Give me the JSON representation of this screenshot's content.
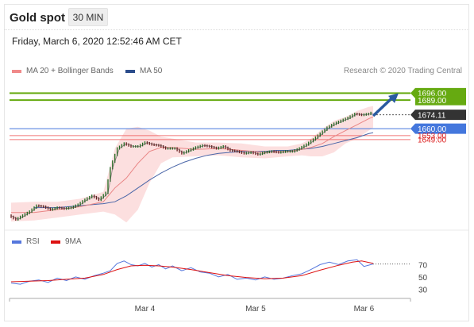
{
  "header": {
    "title": "Gold spot",
    "timeframe": "30 MIN"
  },
  "datetime": "Friday, March 6, 2020 12:52:46 AM CET",
  "legend_main": [
    {
      "label": "MA 20 + Bollinger Bands",
      "color": "#f08a8a"
    },
    {
      "label": "MA 50",
      "color": "#2c4d8c"
    }
  ],
  "credit": "Research © 2020 Trading Central",
  "legend_rsi": [
    {
      "label": "RSI",
      "color": "#5577dd"
    },
    {
      "label": "9MA",
      "color": "#dd1111"
    }
  ],
  "colors": {
    "resistance": "#66aa11",
    "pivot": "#4477dd",
    "support": "#ee5555",
    "last": "#333333",
    "arrow": "#2a5aa0"
  },
  "chart_data": {
    "type": "line",
    "price_ylim": [
      1562,
      1710
    ],
    "x_ticks": [
      {
        "label": "Mar 4",
        "bar": 58
      },
      {
        "label": "Mar 5",
        "bar": 106
      },
      {
        "label": "Mar 6",
        "bar": 153
      }
    ],
    "bar_count": 158,
    "levels": [
      {
        "value": 1696.0,
        "label": "1696.00",
        "kind": "resistance"
      },
      {
        "value": 1689.0,
        "label": "1689.00",
        "kind": "resistance"
      },
      {
        "value": 1674.11,
        "label": "1674.11",
        "kind": "last"
      },
      {
        "value": 1660.0,
        "label": "1660.00",
        "kind": "pivot"
      },
      {
        "value": 1653.0,
        "label": "1653.00",
        "kind": "support"
      },
      {
        "value": 1649.0,
        "label": "1649.00",
        "kind": "support"
      }
    ],
    "price_points": [
      [
        0,
        1572
      ],
      [
        3,
        1568
      ],
      [
        6,
        1572
      ],
      [
        9,
        1576
      ],
      [
        12,
        1582
      ],
      [
        15,
        1581
      ],
      [
        18,
        1578
      ],
      [
        21,
        1580
      ],
      [
        24,
        1579
      ],
      [
        27,
        1580
      ],
      [
        30,
        1583
      ],
      [
        33,
        1588
      ],
      [
        36,
        1592
      ],
      [
        39,
        1588
      ],
      [
        42,
        1595
      ],
      [
        44,
        1620
      ],
      [
        47,
        1640
      ],
      [
        50,
        1645
      ],
      [
        53,
        1642
      ],
      [
        56,
        1642
      ],
      [
        59,
        1646
      ],
      [
        62,
        1644
      ],
      [
        65,
        1643
      ],
      [
        68,
        1640
      ],
      [
        72,
        1640
      ],
      [
        75,
        1635
      ],
      [
        78,
        1638
      ],
      [
        81,
        1641
      ],
      [
        84,
        1643
      ],
      [
        87,
        1642
      ],
      [
        90,
        1640
      ],
      [
        93,
        1642
      ],
      [
        96,
        1638
      ],
      [
        99,
        1637
      ],
      [
        102,
        1635
      ],
      [
        105,
        1636
      ],
      [
        108,
        1634
      ],
      [
        111,
        1636
      ],
      [
        114,
        1637
      ],
      [
        117,
        1636
      ],
      [
        120,
        1637
      ],
      [
        123,
        1637
      ],
      [
        126,
        1640
      ],
      [
        129,
        1644
      ],
      [
        132,
        1649
      ],
      [
        135,
        1655
      ],
      [
        138,
        1661
      ],
      [
        141,
        1665
      ],
      [
        144,
        1668
      ],
      [
        147,
        1671
      ],
      [
        150,
        1675
      ],
      [
        153,
        1674
      ],
      [
        156,
        1675
      ],
      [
        157,
        1676
      ]
    ],
    "ma20_points": [
      [
        0,
        1575
      ],
      [
        10,
        1575
      ],
      [
        20,
        1578
      ],
      [
        30,
        1581
      ],
      [
        40,
        1586
      ],
      [
        45,
        1600
      ],
      [
        50,
        1610
      ],
      [
        55,
        1625
      ],
      [
        60,
        1637
      ],
      [
        65,
        1641
      ],
      [
        70,
        1641
      ],
      [
        80,
        1639
      ],
      [
        90,
        1640
      ],
      [
        100,
        1638
      ],
      [
        110,
        1636
      ],
      [
        120,
        1637
      ],
      [
        126,
        1639
      ],
      [
        130,
        1641
      ],
      [
        135,
        1645
      ],
      [
        140,
        1652
      ],
      [
        145,
        1658
      ],
      [
        150,
        1664
      ],
      [
        155,
        1670
      ],
      [
        157,
        1672
      ]
    ],
    "ma50_points": [
      [
        10,
        1580
      ],
      [
        20,
        1580
      ],
      [
        30,
        1582
      ],
      [
        40,
        1584
      ],
      [
        45,
        1586
      ],
      [
        50,
        1592
      ],
      [
        55,
        1600
      ],
      [
        60,
        1608
      ],
      [
        65,
        1615
      ],
      [
        70,
        1621
      ],
      [
        75,
        1626
      ],
      [
        80,
        1630
      ],
      [
        85,
        1633
      ],
      [
        90,
        1635
      ],
      [
        95,
        1636
      ],
      [
        100,
        1637
      ],
      [
        105,
        1637
      ],
      [
        110,
        1637
      ],
      [
        115,
        1638
      ],
      [
        120,
        1638
      ],
      [
        125,
        1639
      ],
      [
        130,
        1640
      ],
      [
        135,
        1642
      ],
      [
        140,
        1645
      ],
      [
        145,
        1648
      ],
      [
        150,
        1651
      ],
      [
        155,
        1655
      ],
      [
        157,
        1656
      ]
    ],
    "bollinger_upper": [
      [
        0,
        1585
      ],
      [
        10,
        1586
      ],
      [
        20,
        1586
      ],
      [
        30,
        1589
      ],
      [
        40,
        1596
      ],
      [
        45,
        1640
      ],
      [
        50,
        1660
      ],
      [
        55,
        1662
      ],
      [
        60,
        1658
      ],
      [
        65,
        1652
      ],
      [
        70,
        1650
      ],
      [
        80,
        1646
      ],
      [
        90,
        1646
      ],
      [
        100,
        1645
      ],
      [
        110,
        1642
      ],
      [
        120,
        1642
      ],
      [
        126,
        1645
      ],
      [
        130,
        1650
      ],
      [
        135,
        1660
      ],
      [
        140,
        1668
      ],
      [
        145,
        1672
      ],
      [
        150,
        1678
      ],
      [
        155,
        1682
      ],
      [
        157,
        1683
      ]
    ],
    "bollinger_lower": [
      [
        0,
        1566
      ],
      [
        10,
        1567
      ],
      [
        20,
        1570
      ],
      [
        30,
        1573
      ],
      [
        40,
        1576
      ],
      [
        45,
        1573
      ],
      [
        50,
        1565
      ],
      [
        55,
        1578
      ],
      [
        60,
        1605
      ],
      [
        65,
        1625
      ],
      [
        70,
        1631
      ],
      [
        80,
        1632
      ],
      [
        90,
        1633
      ],
      [
        100,
        1631
      ],
      [
        110,
        1630
      ],
      [
        120,
        1632
      ],
      [
        126,
        1633
      ],
      [
        130,
        1632
      ],
      [
        135,
        1632
      ],
      [
        140,
        1636
      ],
      [
        145,
        1645
      ],
      [
        150,
        1650
      ],
      [
        155,
        1658
      ],
      [
        157,
        1661
      ]
    ],
    "projection": {
      "from": [
        157,
        1673
      ],
      "to": [
        168,
        1696
      ]
    },
    "rsi_ylim": [
      20,
      90
    ],
    "rsi_ticks": [
      70,
      50,
      30
    ],
    "rsi_points": [
      [
        0,
        40
      ],
      [
        4,
        38
      ],
      [
        8,
        43
      ],
      [
        12,
        45
      ],
      [
        16,
        41
      ],
      [
        20,
        48
      ],
      [
        24,
        44
      ],
      [
        28,
        50
      ],
      [
        32,
        46
      ],
      [
        36,
        52
      ],
      [
        40,
        56
      ],
      [
        43,
        60
      ],
      [
        46,
        72
      ],
      [
        49,
        76
      ],
      [
        52,
        70
      ],
      [
        55,
        68
      ],
      [
        58,
        72
      ],
      [
        61,
        66
      ],
      [
        64,
        70
      ],
      [
        67,
        63
      ],
      [
        70,
        68
      ],
      [
        74,
        60
      ],
      [
        78,
        65
      ],
      [
        82,
        58
      ],
      [
        86,
        56
      ],
      [
        90,
        50
      ],
      [
        94,
        54
      ],
      [
        98,
        46
      ],
      [
        102,
        48
      ],
      [
        106,
        45
      ],
      [
        110,
        50
      ],
      [
        114,
        46
      ],
      [
        118,
        48
      ],
      [
        122,
        52
      ],
      [
        126,
        55
      ],
      [
        130,
        62
      ],
      [
        134,
        70
      ],
      [
        138,
        74
      ],
      [
        142,
        70
      ],
      [
        146,
        76
      ],
      [
        150,
        78
      ],
      [
        153,
        67
      ],
      [
        156,
        70
      ],
      [
        157,
        71
      ]
    ],
    "rsi_ma_points": [
      [
        0,
        42
      ],
      [
        8,
        43
      ],
      [
        16,
        44
      ],
      [
        24,
        46
      ],
      [
        32,
        48
      ],
      [
        40,
        54
      ],
      [
        46,
        62
      ],
      [
        52,
        68
      ],
      [
        58,
        69
      ],
      [
        64,
        68
      ],
      [
        70,
        66
      ],
      [
        78,
        62
      ],
      [
        86,
        57
      ],
      [
        94,
        52
      ],
      [
        102,
        49
      ],
      [
        110,
        47
      ],
      [
        118,
        48
      ],
      [
        126,
        52
      ],
      [
        134,
        61
      ],
      [
        142,
        69
      ],
      [
        148,
        74
      ],
      [
        152,
        76
      ],
      [
        157,
        72
      ]
    ]
  }
}
